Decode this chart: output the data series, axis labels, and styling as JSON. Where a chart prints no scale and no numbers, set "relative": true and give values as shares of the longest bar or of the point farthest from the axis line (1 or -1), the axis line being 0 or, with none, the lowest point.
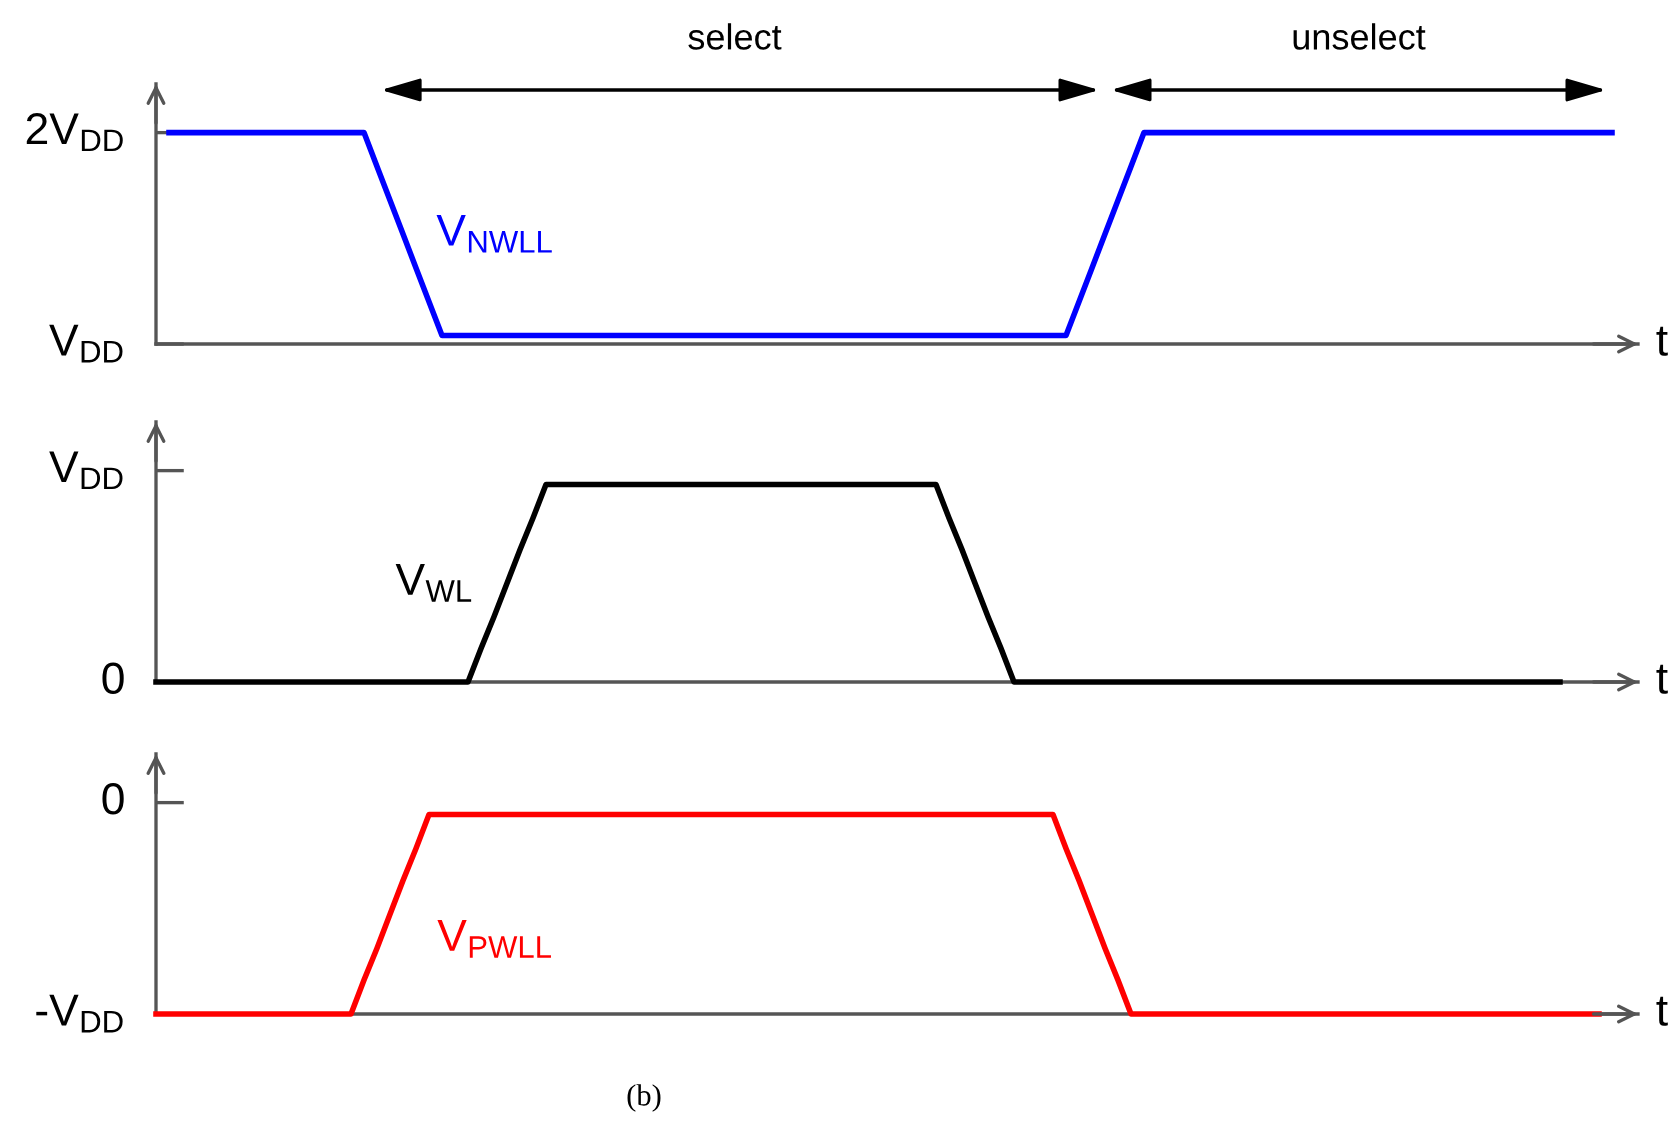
{
  "chart_data": [
    {
      "type": "line",
      "relative": true,
      "categories": [
        null,
        null,
        null,
        null,
        null,
        null,
        null,
        null,
        null,
        null,
        null,
        null,
        null,
        null,
        null,
        null,
        null,
        null,
        null,
        null,
        null,
        null,
        null,
        null,
        null,
        null,
        null,
        null,
        null,
        null,
        null,
        null,
        null,
        null,
        null,
        null,
        null,
        null,
        null,
        null,
        null,
        null,
        null,
        null,
        null,
        null,
        null,
        null,
        null,
        null,
        null,
        null,
        null,
        null,
        null,
        null,
        null,
        null,
        null,
        null,
        null,
        null,
        null,
        null,
        null,
        null,
        null,
        null,
        null,
        null,
        null,
        null,
        null,
        null,
        null,
        null,
        null,
        null,
        null,
        null,
        null,
        null,
        null,
        null,
        null,
        null,
        null,
        null,
        null,
        null,
        null,
        null,
        null,
        null,
        null,
        null,
        null,
        null,
        null,
        null,
        null,
        null,
        null,
        null,
        null,
        null,
        null,
        null,
        null,
        null,
        null,
        null,
        null
      ],
      "series": [
        {
          "name": "V$_{NWLL}$",
          "color": "#0000ff",
          "values": [
            null,
            1,
            1,
            1,
            1,
            1,
            1,
            1,
            1,
            1,
            1,
            1,
            1,
            1,
            1,
            1,
            1,
            0.84,
            0.68,
            0.52,
            0.36,
            0.2,
            0.04,
            0.04,
            0.04,
            0.04,
            0.04,
            0.04,
            0.04,
            0.04,
            0.04,
            0.04,
            0.04,
            0.04,
            0.04,
            0.04,
            0.04,
            0.04,
            0.04,
            0.04,
            0.04,
            0.04,
            0.04,
            0.04,
            0.04,
            0.04,
            0.04,
            0.04,
            0.04,
            0.04,
            0.04,
            0.04,
            0.04,
            0.04,
            0.04,
            0.04,
            0.04,
            0.04,
            0.04,
            0.04,
            0.04,
            0.04,
            0.04,
            0.04,
            0.04,
            0.04,
            0.04,
            0.04,
            0.04,
            0.04,
            0.04,
            0.2,
            0.36,
            0.52,
            0.68,
            0.84,
            1,
            1,
            1,
            1,
            1,
            1,
            1,
            1,
            1,
            1,
            1,
            1,
            1,
            1,
            1,
            1,
            1,
            1,
            1,
            1,
            1,
            1,
            1,
            1,
            1,
            1,
            1,
            1,
            1,
            1,
            1,
            1,
            1,
            1,
            1,
            1,
            1
          ]
        }
      ],
      "xlabel": "t",
      "annotations": [
        "2V$_{DD}$",
        "V$_{DD}$",
        "select",
        "unselect"
      ]
    },
    {
      "type": "line",
      "relative": true,
      "categories": [
        null,
        null,
        null,
        null,
        null,
        null,
        null,
        null,
        null,
        null,
        null,
        null,
        null,
        null,
        null,
        null,
        null,
        null,
        null,
        null,
        null,
        null,
        null,
        null,
        null,
        null,
        null,
        null,
        null,
        null,
        null,
        null,
        null,
        null,
        null,
        null,
        null,
        null,
        null,
        null,
        null,
        null,
        null,
        null,
        null,
        null,
        null,
        null,
        null,
        null,
        null,
        null,
        null,
        null,
        null,
        null,
        null,
        null,
        null,
        null,
        null,
        null,
        null,
        null,
        null,
        null,
        null,
        null,
        null,
        null,
        null,
        null,
        null,
        null,
        null,
        null,
        null,
        null,
        null,
        null,
        null,
        null,
        null,
        null,
        null,
        null,
        null,
        null,
        null,
        null,
        null,
        null,
        null,
        null,
        null,
        null,
        null,
        null,
        null,
        null,
        null,
        null,
        null,
        null,
        null,
        null,
        null,
        null,
        null,
        null,
        null,
        null,
        null
      ],
      "series": [
        {
          "name": "V$_{WL}$",
          "color": "#000000",
          "values": [
            0,
            0,
            0,
            0,
            0,
            0,
            0,
            0,
            0,
            0,
            0,
            0,
            0,
            0,
            0,
            0,
            0,
            0,
            0,
            0,
            0,
            0,
            0,
            0,
            0,
            0.17,
            0.33,
            0.5,
            0.67,
            0.83,
            1,
            1,
            1,
            1,
            1,
            1,
            1,
            1,
            1,
            1,
            1,
            1,
            1,
            1,
            1,
            1,
            1,
            1,
            1,
            1,
            1,
            1,
            1,
            1,
            1,
            1,
            1,
            1,
            1,
            1,
            1,
            0.83,
            0.67,
            0.5,
            0.33,
            0.17,
            0,
            0,
            0,
            0,
            0,
            0,
            0,
            0,
            0,
            0,
            0,
            0,
            0,
            0,
            0,
            0,
            0,
            0,
            0,
            0,
            0,
            0,
            0,
            0,
            0,
            0,
            0,
            0,
            0,
            0,
            0,
            0,
            0,
            0,
            0,
            0,
            0,
            0,
            0,
            0,
            0,
            0,
            0,
            null,
            null,
            null,
            null
          ]
        }
      ],
      "xlabel": "t",
      "annotations": [
        "V$_{DD}$",
        "0"
      ]
    },
    {
      "type": "line",
      "relative": true,
      "categories": [
        null,
        null,
        null,
        null,
        null,
        null,
        null,
        null,
        null,
        null,
        null,
        null,
        null,
        null,
        null,
        null,
        null,
        null,
        null,
        null,
        null,
        null,
        null,
        null,
        null,
        null,
        null,
        null,
        null,
        null,
        null,
        null,
        null,
        null,
        null,
        null,
        null,
        null,
        null,
        null,
        null,
        null,
        null,
        null,
        null,
        null,
        null,
        null,
        null,
        null,
        null,
        null,
        null,
        null,
        null,
        null,
        null,
        null,
        null,
        null,
        null,
        null,
        null,
        null,
        null,
        null,
        null,
        null,
        null,
        null,
        null,
        null,
        null,
        null,
        null,
        null,
        null,
        null,
        null,
        null,
        null,
        null,
        null,
        null,
        null,
        null,
        null,
        null,
        null,
        null,
        null,
        null,
        null,
        null,
        null,
        null,
        null,
        null,
        null,
        null,
        null,
        null,
        null,
        null,
        null,
        null,
        null,
        null,
        null,
        null,
        null,
        null,
        null
      ],
      "series": [
        {
          "name": "V$_{PWLL}$",
          "color": "#ff0000",
          "values": [
            0,
            0,
            0,
            0,
            0,
            0,
            0,
            0,
            0,
            0,
            0,
            0,
            0,
            0,
            0,
            0,
            0.17,
            0.33,
            0.5,
            0.67,
            0.83,
            1,
            1,
            1,
            1,
            1,
            1,
            1,
            1,
            1,
            1,
            1,
            1,
            1,
            1,
            1,
            1,
            1,
            1,
            1,
            1,
            1,
            1,
            1,
            1,
            1,
            1,
            1,
            1,
            1,
            1,
            1,
            1,
            1,
            1,
            1,
            1,
            1,
            1,
            1,
            1,
            1,
            1,
            1,
            1,
            1,
            1,
            1,
            1,
            1,
            0.83,
            0.67,
            0.5,
            0.33,
            0.17,
            0,
            0,
            0,
            0,
            0,
            0,
            0,
            0,
            0,
            0,
            0,
            0,
            0,
            0,
            0,
            0,
            0,
            0,
            0,
            0,
            0,
            0,
            0,
            0,
            0,
            0,
            0,
            0,
            0,
            0,
            0,
            0,
            0,
            0,
            0,
            0,
            0,
            null
          ]
        }
      ],
      "xlabel": "t",
      "annotations": [
        "0",
        "-V$_{DD}$",
        "(b)"
      ]
    }
  ]
}
